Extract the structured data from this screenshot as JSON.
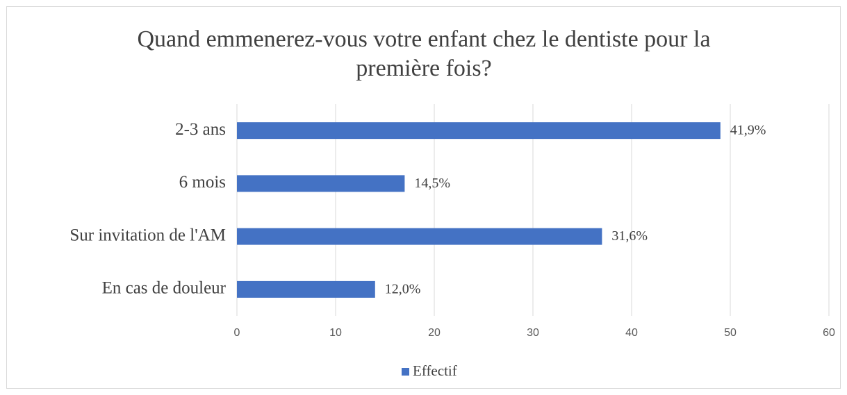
{
  "chart_data": {
    "type": "bar",
    "orientation": "horizontal",
    "title": "Quand emmenerez-vous votre enfant chez le dentiste pour la première fois?",
    "categories": [
      "2-3 ans",
      "6 mois",
      "Sur invitation de l'AM",
      "En cas de douleur"
    ],
    "series": [
      {
        "name": "Effectif",
        "color": "#4472c4",
        "values": [
          49,
          17,
          37,
          14
        ],
        "value_labels": [
          "41,9%",
          "14,5%",
          "31,6%",
          "12,0%"
        ]
      }
    ],
    "xlim": [
      0,
      60
    ],
    "xticks": [
      0,
      10,
      20,
      30,
      40,
      50,
      60
    ],
    "grid": true,
    "legend": "bottom"
  }
}
